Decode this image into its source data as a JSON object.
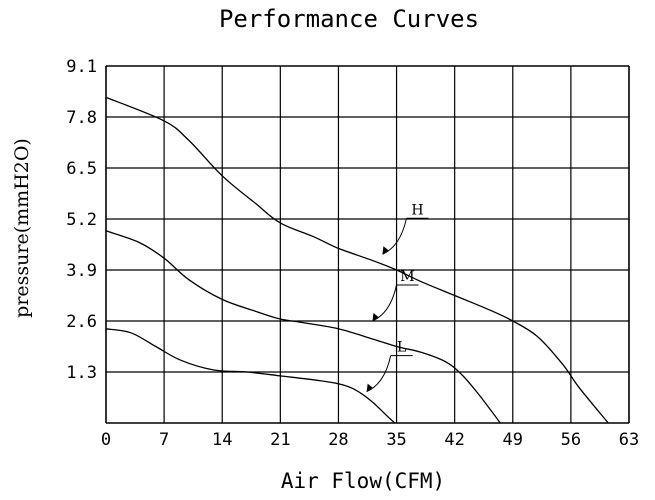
{
  "chart_data": {
    "type": "line",
    "title": "Performance Curves",
    "xlabel": "Air Flow(CFM)",
    "ylabel": "pressure(mmH2O)",
    "xlim": [
      0,
      63
    ],
    "ylim": [
      0,
      9.1
    ],
    "x_ticks": [
      "0",
      "7",
      "14",
      "21",
      "28",
      "35",
      "42",
      "49",
      "56",
      "63"
    ],
    "y_ticks": [
      "1.3",
      "2.6",
      "3.9",
      "5.2",
      "6.5",
      "7.8",
      "9.1"
    ],
    "grid": true,
    "series": [
      {
        "name": "H",
        "points": [
          [
            0,
            8.3
          ],
          [
            7,
            7.7
          ],
          [
            10,
            7.2
          ],
          [
            14,
            6.3
          ],
          [
            18,
            5.6
          ],
          [
            21,
            5.1
          ],
          [
            25,
            4.75
          ],
          [
            28,
            4.45
          ],
          [
            32,
            4.15
          ],
          [
            35,
            3.9
          ],
          [
            38,
            3.6
          ],
          [
            42,
            3.25
          ],
          [
            46,
            2.9
          ],
          [
            49,
            2.6
          ],
          [
            52,
            2.2
          ],
          [
            55,
            1.5
          ],
          [
            57,
            0.9
          ],
          [
            60.5,
            0
          ]
        ]
      },
      {
        "name": "M",
        "points": [
          [
            0,
            4.9
          ],
          [
            4,
            4.6
          ],
          [
            7,
            4.2
          ],
          [
            10,
            3.65
          ],
          [
            14,
            3.15
          ],
          [
            18,
            2.85
          ],
          [
            21,
            2.65
          ],
          [
            24,
            2.55
          ],
          [
            28,
            2.4
          ],
          [
            32,
            2.15
          ],
          [
            35,
            1.95
          ],
          [
            38,
            1.8
          ],
          [
            41,
            1.55
          ],
          [
            43,
            1.2
          ],
          [
            45,
            0.7
          ],
          [
            47.5,
            0
          ]
        ]
      },
      {
        "name": "L",
        "points": [
          [
            0,
            2.4
          ],
          [
            3,
            2.3
          ],
          [
            6,
            1.95
          ],
          [
            9,
            1.6
          ],
          [
            13,
            1.35
          ],
          [
            17,
            1.3
          ],
          [
            21,
            1.2
          ],
          [
            25,
            1.1
          ],
          [
            28,
            1.0
          ],
          [
            30,
            0.85
          ],
          [
            32,
            0.55
          ],
          [
            34,
            0.15
          ],
          [
            34.8,
            0
          ]
        ]
      }
    ],
    "annotations": [
      {
        "label": "H",
        "target": [
          33.3,
          4.3
        ]
      },
      {
        "label": "M",
        "target": [
          32.1,
          2.6
        ]
      },
      {
        "label": "L",
        "target": [
          31.4,
          0.8
        ]
      }
    ]
  }
}
